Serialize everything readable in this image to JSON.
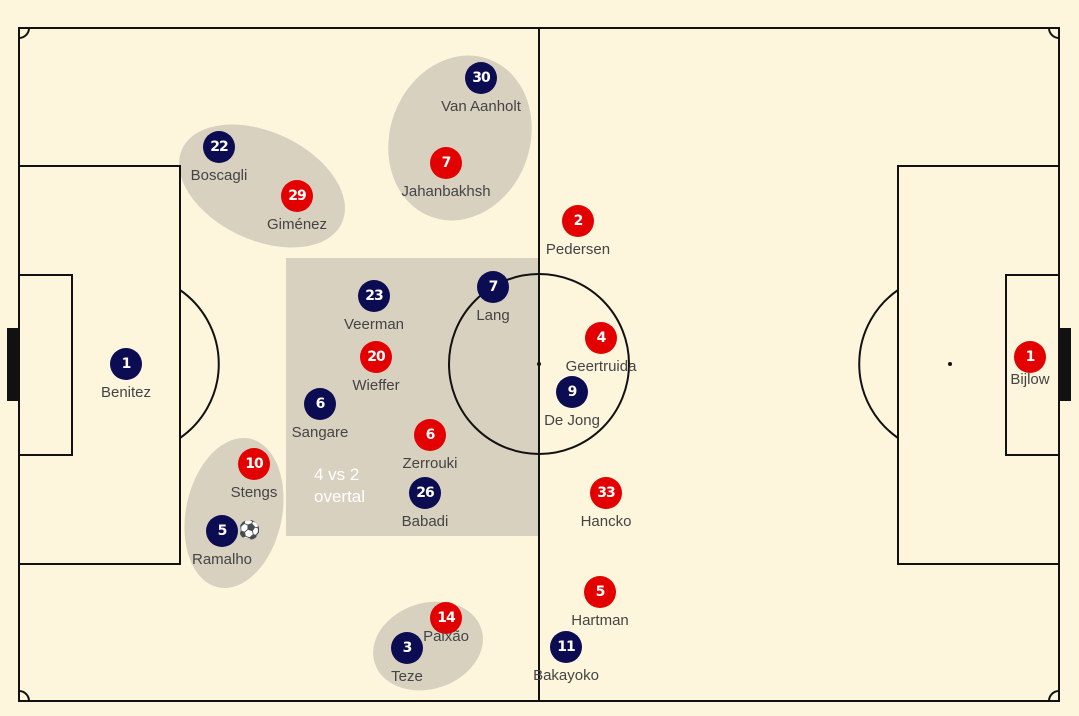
{
  "overload_label": {
    "line1": "4 vs 2",
    "line2": "overtal"
  },
  "colors": {
    "pitch": "#fdf6dd",
    "zone": "#d8d1c0",
    "navy": "#0c0c52",
    "red": "#e30000"
  },
  "players": {
    "navy_benitez": {
      "number": "1",
      "name": "Benitez"
    },
    "navy_boscagli": {
      "number": "22",
      "name": "Boscagli"
    },
    "navy_vanaanholt": {
      "number": "30",
      "name": "Van Aanholt"
    },
    "navy_veerman": {
      "number": "23",
      "name": "Veerman"
    },
    "navy_lang": {
      "number": "7",
      "name": "Lang"
    },
    "navy_sangare": {
      "number": "6",
      "name": "Sangare"
    },
    "navy_dejong": {
      "number": "9",
      "name": "De Jong"
    },
    "navy_babadi": {
      "number": "26",
      "name": "Babadi"
    },
    "navy_ramalho": {
      "number": "5",
      "name": "Ramalho"
    },
    "navy_teze": {
      "number": "3",
      "name": "Teze"
    },
    "navy_bakayoko": {
      "number": "11",
      "name": "Bakayoko"
    },
    "red_gimenez": {
      "number": "29",
      "name": "Giménez"
    },
    "red_jahanbakhsh": {
      "number": "7",
      "name": "Jahanbakhsh"
    },
    "red_pedersen": {
      "number": "2",
      "name": "Pedersen"
    },
    "red_wieffer": {
      "number": "20",
      "name": "Wieffer"
    },
    "red_geertruida": {
      "number": "4",
      "name": "Geertruida"
    },
    "red_zerrouki": {
      "number": "6",
      "name": "Zerrouki"
    },
    "red_stengs": {
      "number": "10",
      "name": "Stengs"
    },
    "red_hancko": {
      "number": "33",
      "name": "Hancko"
    },
    "red_hartman": {
      "number": "5",
      "name": "Hartman"
    },
    "red_paixao": {
      "number": "14",
      "name": "Paixão"
    },
    "red_bijlow": {
      "number": "1",
      "name": "Bijlow"
    }
  },
  "ball_icon": "soccer-ball-icon"
}
